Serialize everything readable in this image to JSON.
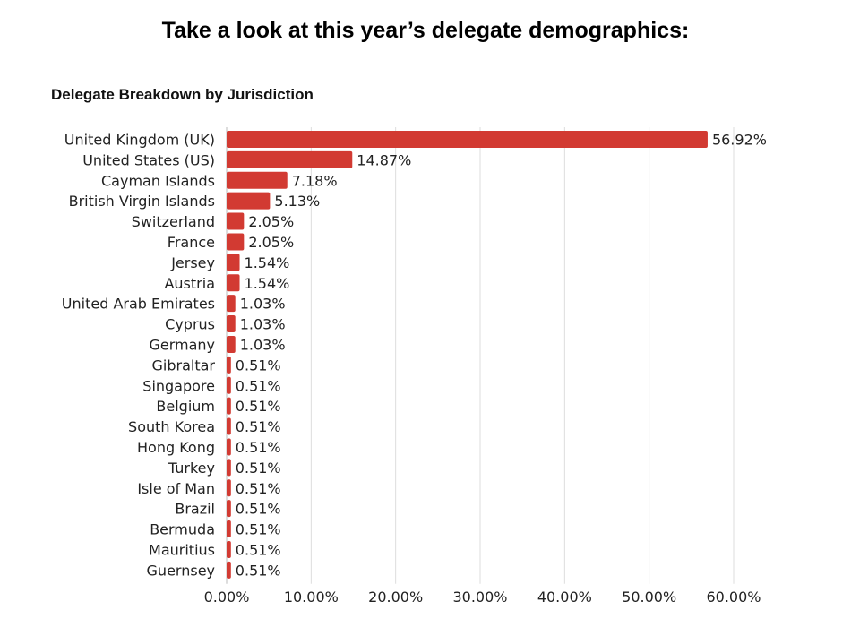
{
  "heading": "Take a look at this year’s delegate demographics:",
  "chart_data": {
    "type": "bar",
    "orientation": "horizontal",
    "title": "Delegate Breakdown by Jurisdiction",
    "xlabel": "",
    "ylabel": "",
    "xlim": [
      0,
      60
    ],
    "grid": true,
    "bar_color": "#d23a32",
    "categories": [
      "United Kingdom (UK)",
      "United States (US)",
      "Cayman Islands",
      "British Virgin Islands",
      "Switzerland",
      "France",
      "Jersey",
      "Austria",
      "United Arab Emirates",
      "Cyprus",
      "Germany",
      "Gibraltar",
      "Singapore",
      "Belgium",
      "South Korea",
      "Hong Kong",
      "Turkey",
      "Isle of Man",
      "Brazil",
      "Bermuda",
      "Mauritius",
      "Guernsey"
    ],
    "values": [
      56.92,
      14.87,
      7.18,
      5.13,
      2.05,
      2.05,
      1.54,
      1.54,
      1.03,
      1.03,
      1.03,
      0.51,
      0.51,
      0.51,
      0.51,
      0.51,
      0.51,
      0.51,
      0.51,
      0.51,
      0.51,
      0.51
    ],
    "value_labels": [
      "56.92%",
      "14.87%",
      "7.18%",
      "5.13%",
      "2.05%",
      "2.05%",
      "1.54%",
      "1.54%",
      "1.03%",
      "1.03%",
      "1.03%",
      "0.51%",
      "0.51%",
      "0.51%",
      "0.51%",
      "0.51%",
      "0.51%",
      "0.51%",
      "0.51%",
      "0.51%",
      "0.51%",
      "0.51%"
    ],
    "x_ticks": [
      0,
      10,
      20,
      30,
      40,
      50,
      60
    ],
    "x_tick_labels": [
      "0.00%",
      "10.00%",
      "20.00%",
      "30.00%",
      "40.00%",
      "50.00%",
      "60.00%"
    ]
  }
}
